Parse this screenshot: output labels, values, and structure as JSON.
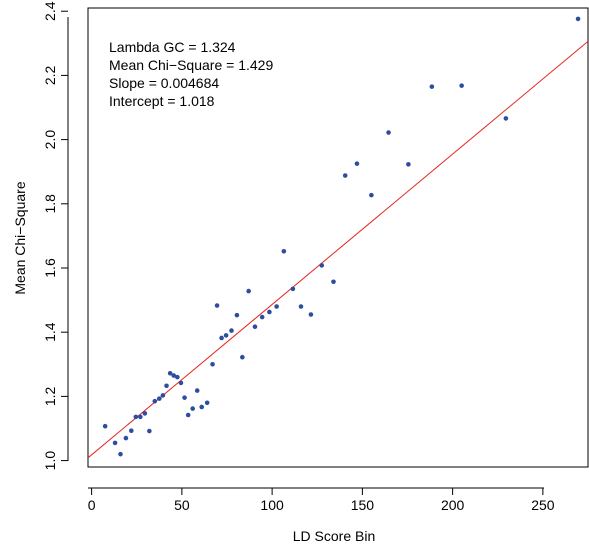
{
  "chart_data": {
    "type": "scatter",
    "title": "",
    "xlabel": "LD Score Bin",
    "ylabel": "Mean Chi−Square",
    "xlim": [
      -2,
      275
    ],
    "ylim": [
      0.98,
      2.41
    ],
    "x_ticks": [
      0,
      50,
      100,
      150,
      200,
      250
    ],
    "y_ticks": [
      1.0,
      1.2,
      1.4,
      1.6,
      1.8,
      2.0,
      2.2,
      2.4
    ],
    "x_tick_labels": [
      "0",
      "50",
      "100",
      "150",
      "200",
      "250"
    ],
    "y_tick_labels": [
      "1.0",
      "1.2",
      "1.4",
      "1.6",
      "1.8",
      "2.0",
      "2.2",
      "2.4"
    ],
    "grid": false,
    "annotations": [
      "Lambda GC = 1.324",
      "Mean Chi−Square = 1.429",
      "Slope = 0.004684",
      "Intercept = 1.018"
    ],
    "regression_line": {
      "slope": 0.004684,
      "intercept": 1.018,
      "color": "#e8251f"
    },
    "point_color": "#2d4ea0",
    "points": {
      "x": [
        7.5,
        13,
        16,
        19,
        22,
        24.5,
        27,
        29.5,
        32,
        35,
        37.5,
        39.5,
        41.5,
        43.5,
        45.5,
        47.5,
        49.5,
        51.5,
        53.5,
        56,
        58.5,
        61,
        64,
        67,
        69.5,
        72,
        74.5,
        77.5,
        80.5,
        83.5,
        87,
        90.5,
        94.5,
        98.5,
        102.5,
        106.5,
        111.5,
        116,
        121.5,
        127.5,
        134,
        140.5,
        147,
        155,
        164.5,
        175.5,
        188.5,
        205,
        229.5,
        269.5
      ],
      "y": [
        1.107,
        1.055,
        1.02,
        1.07,
        1.093,
        1.136,
        1.136,
        1.147,
        1.092,
        1.185,
        1.193,
        1.203,
        1.233,
        1.272,
        1.265,
        1.26,
        1.242,
        1.196,
        1.142,
        1.162,
        1.218,
        1.167,
        1.18,
        1.3,
        1.483,
        1.382,
        1.39,
        1.405,
        1.453,
        1.322,
        1.528,
        1.417,
        1.447,
        1.463,
        1.48,
        1.652,
        1.535,
        1.48,
        1.455,
        1.608,
        1.557,
        1.888,
        1.925,
        1.827,
        2.022,
        1.923,
        2.165,
        2.168,
        2.066,
        2.376
      ]
    }
  }
}
